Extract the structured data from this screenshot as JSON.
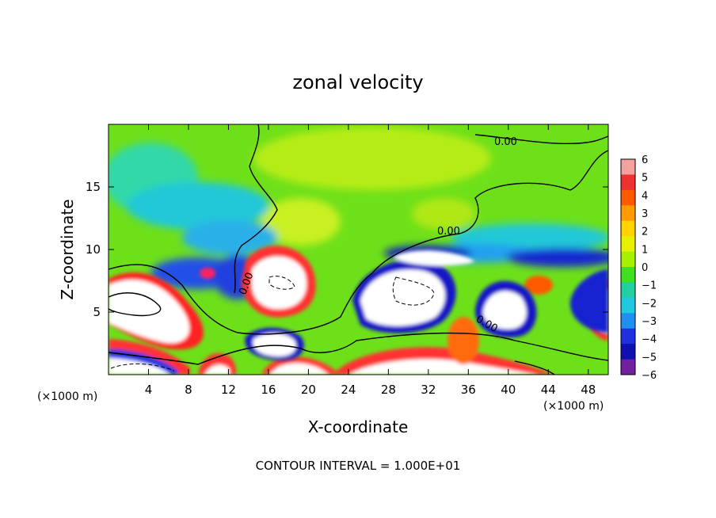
{
  "chart_data": {
    "type": "heatmap",
    "title": "zonal velocity",
    "xlabel": "X-coordinate",
    "ylabel": "Z-coordinate",
    "x_unit": "(×1000 m)",
    "z_unit": "(×1000 m)",
    "xlim": [
      0,
      50
    ],
    "ylim": [
      0,
      20
    ],
    "x_ticks": [
      "4",
      "8",
      "12",
      "16",
      "20",
      "24",
      "28",
      "32",
      "36",
      "40",
      "44",
      "48"
    ],
    "y_ticks": [
      "5",
      "10",
      "15"
    ],
    "colorbar": {
      "ticks": [
        "6",
        "5",
        "4",
        "3",
        "2",
        "1",
        "0",
        "−1",
        "−2",
        "−3",
        "−4",
        "−5",
        "−6"
      ],
      "colors": [
        "#f2a0a0",
        "#ee3030",
        "#ff5a00",
        "#ff9a00",
        "#ffd200",
        "#e6f000",
        "#a6f000",
        "#40e020",
        "#20d0a0",
        "#20c8e0",
        "#2090f0",
        "#2030e0",
        "#1010b0",
        "#7020a0"
      ]
    },
    "contour_labels": [
      "0.00",
      "0.00",
      "0.00",
      "0.00"
    ],
    "footer": "CONTOUR INTERVAL = 1.000E+01"
  }
}
